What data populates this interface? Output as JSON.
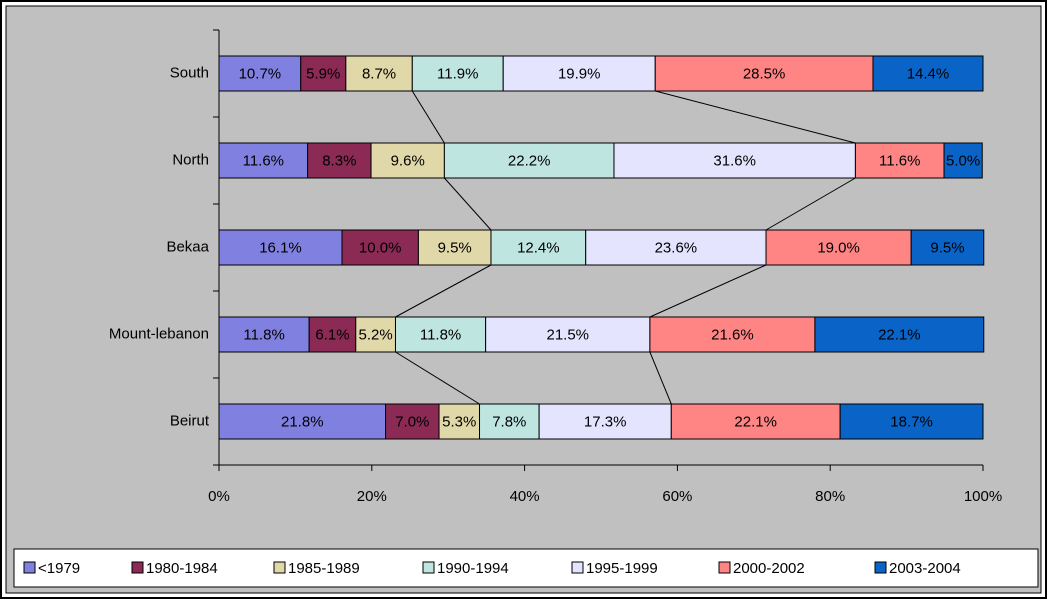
{
  "chart_data": {
    "type": "stacked-bar-horizontal",
    "categories": [
      "South",
      "North",
      "Bekaa",
      "Mount-lebanon",
      "Beirut"
    ],
    "series": [
      {
        "name": "<1979",
        "color": "#8080e0",
        "values": [
          10.7,
          11.6,
          16.1,
          11.8,
          21.8
        ],
        "value_labels": [
          "10.7%",
          "11.6%",
          "16.1%",
          "11.8%",
          "21.8%"
        ]
      },
      {
        "name": "1980-1984",
        "color": "#8a2a55",
        "values": [
          5.9,
          8.3,
          10,
          6.1,
          7
        ],
        "value_labels": [
          "5.9%",
          "8.3%",
          "10.0%",
          "6.1%",
          "7.0%"
        ]
      },
      {
        "name": "1985-1989",
        "color": "#e0d8a8",
        "values": [
          8.7,
          9.6,
          9.5,
          5.2,
          5.3
        ],
        "value_labels": [
          "8.7%",
          "9.6%",
          "9.5%",
          "5.2%",
          "5.3%"
        ]
      },
      {
        "name": "1990-1994",
        "color": "#bfe5e0",
        "values": [
          11.9,
          22.2,
          12.4,
          11.8,
          7.8
        ],
        "value_labels": [
          "11.9%",
          "22.2%",
          "12.4%",
          "11.8%",
          "7.8%"
        ]
      },
      {
        "name": "1995-1999",
        "color": "#e4e4ff",
        "values": [
          19.9,
          31.6,
          23.6,
          21.5,
          17.3
        ],
        "value_labels": [
          "19.9%",
          "31.6%",
          "23.6%",
          "21.5%",
          "17.3%"
        ]
      },
      {
        "name": "2000-2002",
        "color": "#ff8585",
        "values": [
          28.5,
          11.6,
          19,
          21.6,
          22.1
        ],
        "value_labels": [
          "28.5%",
          "11.6%",
          "19.0%",
          "21.6%",
          "22.1%"
        ]
      },
      {
        "name": "2003-2004",
        "color": "#0a64c8",
        "values": [
          14.4,
          5,
          9.5,
          22.1,
          18.7
        ],
        "value_labels": [
          "14.4%",
          "5.0%",
          "9.5%",
          "22.1%",
          "18.7%"
        ]
      }
    ],
    "xlim": [
      0,
      100
    ],
    "xticks": [
      {
        "value": 0,
        "label": "0%"
      },
      {
        "value": 20,
        "label": "20%"
      },
      {
        "value": 40,
        "label": "40%"
      },
      {
        "value": 60,
        "label": "60%"
      },
      {
        "value": 80,
        "label": "80%"
      },
      {
        "value": 100,
        "label": "100%"
      }
    ],
    "legend": "bottom"
  }
}
